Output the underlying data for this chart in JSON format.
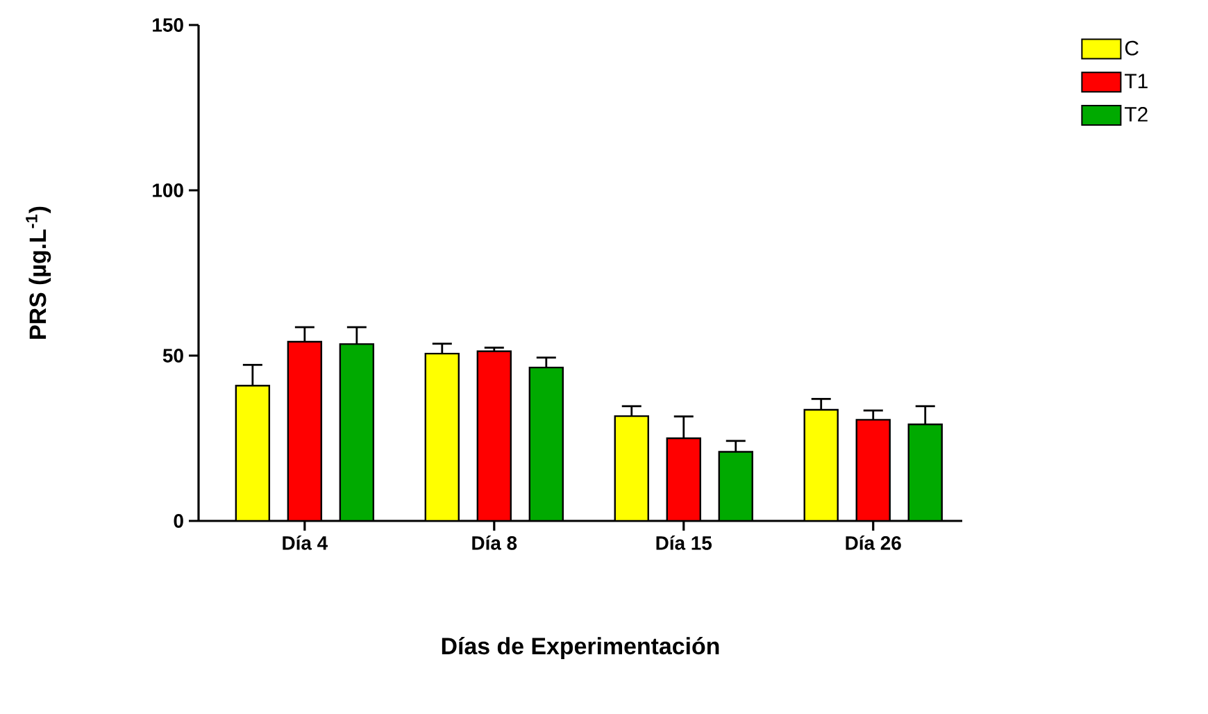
{
  "chart_data": {
    "type": "bar",
    "xlabel": "Días de Experimentación",
    "ylabel": "PRS (µg.L$^{-1}$)",
    "categories": [
      "Día 4",
      "Día 8",
      "Día 15",
      "Día 26"
    ],
    "ylim": [
      0,
      150
    ],
    "yticks": [
      0,
      50,
      100,
      150
    ],
    "legend": "top right",
    "grid": false,
    "series": [
      {
        "name": "C",
        "color": "#ffff00",
        "values": [
          40.9,
          50.6,
          31.7,
          33.6
        ],
        "errors": [
          [
            40.9,
            47.2
          ],
          [
            50.6,
            53.6
          ],
          [
            31.7,
            34.7
          ],
          [
            33.6,
            36.9
          ]
        ]
      },
      {
        "name": "T1",
        "color": "#ff0000",
        "values": [
          54.2,
          51.3,
          25.0,
          30.6
        ],
        "errors": [
          [
            54.2,
            58.6
          ],
          [
            51.3,
            52.4
          ],
          [
            25.0,
            31.6
          ],
          [
            30.6,
            33.4
          ]
        ]
      },
      {
        "name": "T2",
        "color": "#00aa00",
        "values": [
          53.5,
          46.4,
          20.9,
          29.2
        ],
        "errors": [
          [
            53.5,
            58.6
          ],
          [
            46.4,
            49.4
          ],
          [
            20.9,
            24.2
          ],
          [
            29.2,
            34.7
          ]
        ]
      }
    ]
  }
}
